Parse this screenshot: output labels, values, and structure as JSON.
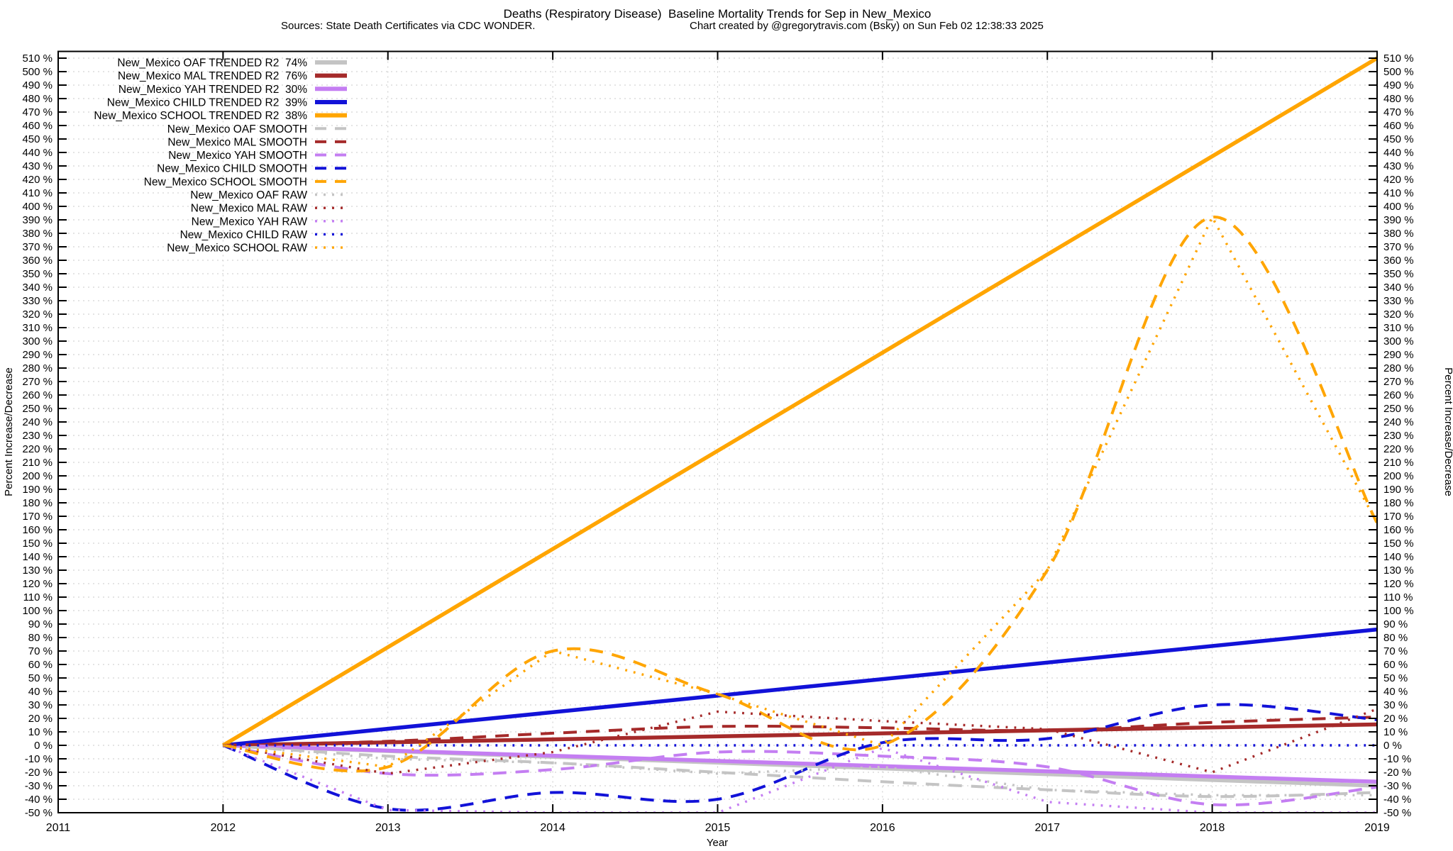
{
  "title": "Deaths (Respiratory Disease)  Baseline Mortality Trends for Sep in New_Mexico",
  "subtitle_left": "Sources: State Death Certificates via CDC WONDER.",
  "subtitle_right": "Chart created by @gregorytravis.com (Bsky) on Sun Feb 02 12:38:33 2025",
  "chart_data": {
    "type": "line",
    "xlabel": "Year",
    "ylabel_left": "Percent Increase/Decrease",
    "ylabel_right": "Percent Increase/Decrease",
    "xlim": [
      2011,
      2019
    ],
    "ylim": [
      -50,
      515
    ],
    "xticks": [
      2011,
      2012,
      2013,
      2014,
      2015,
      2016,
      2017,
      2018,
      2019
    ],
    "yticks": {
      "min": -50,
      "max": 510,
      "step": 10,
      "suffix": " %"
    },
    "grid": true,
    "legend_position": "top-left",
    "series": [
      {
        "name": "New_Mexico OAF TRENDED R2  74%",
        "group": "TRENDED",
        "color": "#c4c4c4",
        "points": [
          [
            2012,
            0
          ],
          [
            2019,
            -30
          ]
        ]
      },
      {
        "name": "New_Mexico MAL TRENDED R2  76%",
        "group": "TRENDED",
        "color": "#a52a2a",
        "points": [
          [
            2012,
            0
          ],
          [
            2019,
            15.5
          ]
        ]
      },
      {
        "name": "New_Mexico YAH TRENDED R2  30%",
        "group": "TRENDED",
        "color": "#c47ef2",
        "points": [
          [
            2012,
            0
          ],
          [
            2019,
            -27
          ]
        ]
      },
      {
        "name": "New_Mexico CHILD TRENDED R2  39%",
        "group": "TRENDED",
        "color": "#1212d8",
        "points": [
          [
            2012,
            0
          ],
          [
            2019,
            86
          ]
        ]
      },
      {
        "name": "New_Mexico SCHOOL TRENDED R2  38%",
        "group": "TRENDED",
        "color": "#ffa500",
        "points": [
          [
            2012,
            0
          ],
          [
            2019,
            510
          ]
        ]
      },
      {
        "name": "New_Mexico OAF SMOOTH",
        "group": "SMOOTH",
        "color": "#c4c4c4",
        "points": [
          [
            2012,
            0
          ],
          [
            2013,
            -8
          ],
          [
            2014,
            -13
          ],
          [
            2015,
            -20
          ],
          [
            2016,
            -27
          ],
          [
            2017,
            -33
          ],
          [
            2018,
            -38
          ],
          [
            2019,
            -35
          ]
        ]
      },
      {
        "name": "New_Mexico MAL SMOOTH",
        "group": "SMOOTH",
        "color": "#a52a2a",
        "points": [
          [
            2012,
            0
          ],
          [
            2013,
            3
          ],
          [
            2014,
            9
          ],
          [
            2015,
            14
          ],
          [
            2016,
            13
          ],
          [
            2017,
            11
          ],
          [
            2018,
            17
          ],
          [
            2019,
            21
          ]
        ]
      },
      {
        "name": "New_Mexico YAH SMOOTH",
        "group": "SMOOTH",
        "color": "#c47ef2",
        "points": [
          [
            2012,
            0
          ],
          [
            2013,
            -21
          ],
          [
            2014,
            -18
          ],
          [
            2015,
            -5
          ],
          [
            2016,
            -8
          ],
          [
            2017,
            -16
          ],
          [
            2018,
            -44
          ],
          [
            2019,
            -31
          ]
        ]
      },
      {
        "name": "New_Mexico CHILD SMOOTH",
        "group": "SMOOTH",
        "color": "#1212d8",
        "points": [
          [
            2012,
            0
          ],
          [
            2013,
            -47
          ],
          [
            2014,
            -35
          ],
          [
            2015,
            -40
          ],
          [
            2016,
            2
          ],
          [
            2017,
            5
          ],
          [
            2018,
            30
          ],
          [
            2019,
            19
          ]
        ]
      },
      {
        "name": "New_Mexico SCHOOL SMOOTH",
        "group": "SMOOTH",
        "color": "#ffa500",
        "points": [
          [
            2012,
            0
          ],
          [
            2013,
            -16
          ],
          [
            2014,
            70
          ],
          [
            2015,
            38
          ],
          [
            2016,
            0
          ],
          [
            2017,
            130
          ],
          [
            2018,
            392
          ],
          [
            2019,
            165
          ]
        ]
      },
      {
        "name": "New_Mexico OAF RAW",
        "group": "RAW",
        "color": "#c4c4c4",
        "points": [
          [
            2012,
            0
          ],
          [
            2013,
            -10
          ],
          [
            2014,
            -13
          ],
          [
            2015,
            -21
          ],
          [
            2016,
            -16
          ],
          [
            2017,
            -33
          ],
          [
            2018,
            -37
          ],
          [
            2019,
            -37
          ]
        ]
      },
      {
        "name": "New_Mexico MAL RAW",
        "group": "RAW",
        "color": "#a52a2a",
        "points": [
          [
            2012,
            0
          ],
          [
            2013,
            -21
          ],
          [
            2014,
            -5
          ],
          [
            2015,
            25
          ],
          [
            2016,
            18
          ],
          [
            2017,
            12
          ],
          [
            2018,
            -20
          ],
          [
            2019,
            27
          ]
        ]
      },
      {
        "name": "New_Mexico YAH RAW",
        "group": "RAW",
        "color": "#c47ef2",
        "points": [
          [
            2012,
            0
          ],
          [
            2013,
            -48
          ],
          [
            2014,
            -50
          ],
          [
            2015,
            -50
          ],
          [
            2016,
            -2
          ],
          [
            2017,
            -42
          ],
          [
            2018,
            -50
          ],
          [
            2019,
            -50
          ]
        ]
      },
      {
        "name": "New_Mexico CHILD RAW",
        "group": "RAW",
        "color": "#1212d8",
        "points": [
          [
            2012,
            0
          ],
          [
            2013,
            0
          ],
          [
            2014,
            0
          ],
          [
            2015,
            0
          ],
          [
            2016,
            0
          ],
          [
            2017,
            0
          ],
          [
            2018,
            0
          ],
          [
            2019,
            0
          ]
        ]
      },
      {
        "name": "New_Mexico SCHOOL RAW",
        "group": "RAW",
        "color": "#ffa500",
        "points": [
          [
            2012,
            0
          ],
          [
            2013,
            -16
          ],
          [
            2014,
            70
          ],
          [
            2015,
            38
          ],
          [
            2016,
            0
          ],
          [
            2017,
            130
          ],
          [
            2018,
            392
          ],
          [
            2019,
            165
          ]
        ]
      }
    ]
  }
}
